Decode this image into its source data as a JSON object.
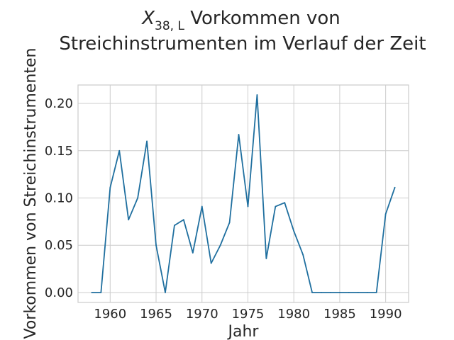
{
  "chart_data": {
    "type": "line",
    "title_line1_math": "X",
    "title_line1_subscript": "38, L",
    "title_line1_rest": " Vorkommen von",
    "title_line2": "Streichinstrumenten im Verlauf der Zeit",
    "xlabel": "Jahr",
    "ylabel": "Vorkommen von Streichinstrumenten",
    "xlim": [
      1956.5,
      1992.5
    ],
    "ylim": [
      -0.0105,
      0.2195
    ],
    "x_ticks": [
      1960,
      1965,
      1970,
      1975,
      1980,
      1985,
      1990
    ],
    "x_tick_labels": [
      "1960",
      "1965",
      "1970",
      "1975",
      "1980",
      "1985",
      "1990"
    ],
    "y_ticks": [
      0.0,
      0.05,
      0.1,
      0.15,
      0.2
    ],
    "y_tick_labels": [
      "0.00",
      "0.05",
      "0.10",
      "0.15",
      "0.20"
    ],
    "grid": true,
    "line_color": "#1f6f9f",
    "series": [
      {
        "x": [
          1958,
          1959,
          1960,
          1961,
          1962,
          1963,
          1964,
          1965,
          1966,
          1967,
          1968,
          1969,
          1970,
          1971,
          1972,
          1973,
          1974,
          1975,
          1976,
          1977,
          1978,
          1979,
          1980,
          1981,
          1982,
          1983,
          1984,
          1985,
          1986,
          1987,
          1988,
          1989,
          1990,
          1991
        ],
        "values": [
          0.0,
          0.0,
          0.111,
          0.15,
          0.077,
          0.1,
          0.16,
          0.05,
          0.0,
          0.071,
          0.077,
          0.042,
          0.091,
          0.031,
          0.05,
          0.074,
          0.167,
          0.091,
          0.209,
          0.036,
          0.091,
          0.095,
          0.065,
          0.04,
          0.0,
          0.0,
          0.0,
          0.0,
          0.0,
          0.0,
          0.0,
          0.0,
          0.083,
          0.111
        ]
      }
    ]
  }
}
